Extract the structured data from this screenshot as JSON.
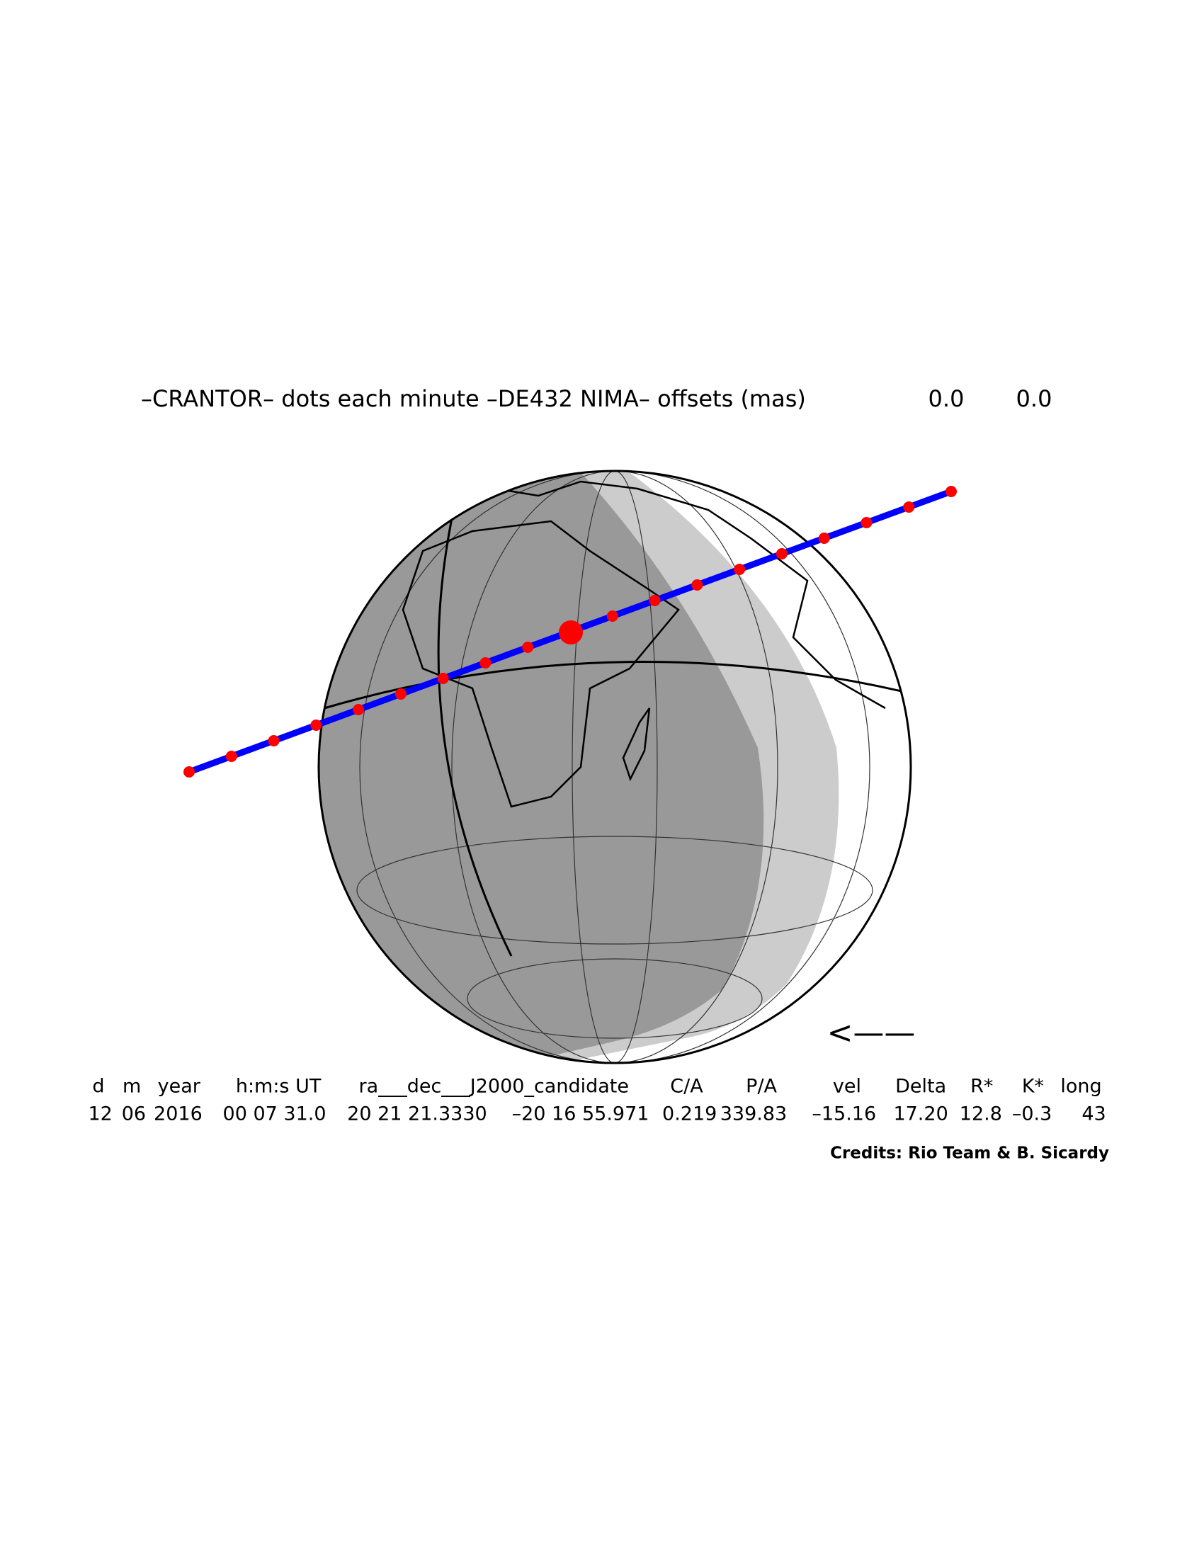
{
  "title": {
    "text": "–CRANTOR– dots each minute –DE432 NIMA– offsets (mas)",
    "offsets": [
      "0.0",
      "0.0"
    ]
  },
  "direction": "<——",
  "table": {
    "header": [
      "d",
      "m",
      "year",
      "h:m:s UT",
      "ra___dec___J2000_candidate",
      "C/A",
      "P/A",
      "vel",
      "Delta",
      "R*",
      "K*",
      "long"
    ],
    "rows": [
      [
        "12",
        "06",
        "2016",
        "00 07 31.0",
        "20 21 21.3330",
        "–20 16 55.971",
        "0.219",
        "339.83",
        "–15.16",
        "17.20",
        "12.8",
        "–0.3",
        "43"
      ]
    ]
  },
  "credits": "Credits: Rio Team & B. Sicardy"
}
